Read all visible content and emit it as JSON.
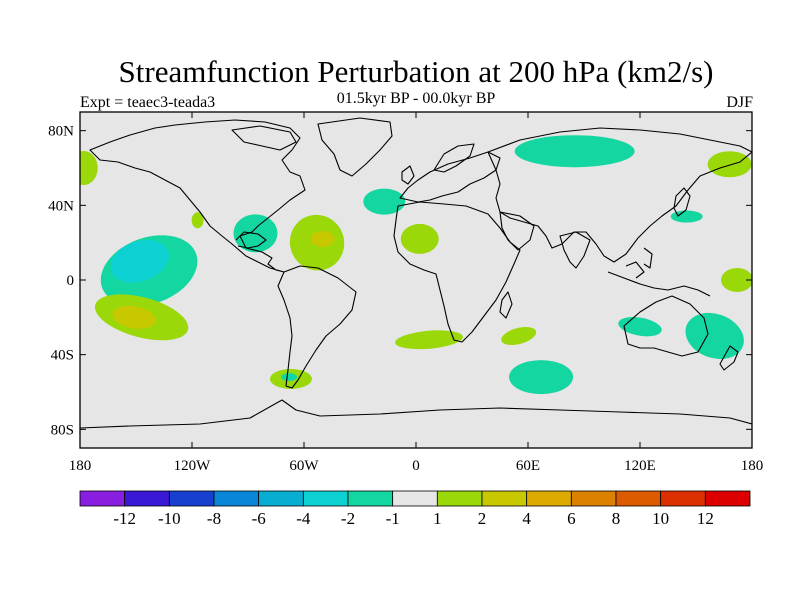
{
  "title": "Streamfunction Perturbation at 200 hPa (km2/s)",
  "subtitle": "01.5kyr BP - 00.0kyr BP",
  "left_label": "Expt = teaec3-teada3",
  "right_label": "DJF",
  "map": {
    "lon_range": [
      -180,
      180
    ],
    "lat_range": [
      -90,
      90
    ],
    "x_ticks": [
      "180",
      "120W",
      "60W",
      "0",
      "60E",
      "120E",
      "180"
    ],
    "y_ticks": [
      "80N",
      "40N",
      "0",
      "40S",
      "80S"
    ],
    "background_color": "#e6e6e6"
  },
  "colorbar": {
    "labels": [
      "-12",
      "-10",
      "-8",
      "-6",
      "-4",
      "-2",
      "-1",
      "1",
      "2",
      "4",
      "6",
      "8",
      "10",
      "12"
    ],
    "colors": [
      "#8a1ee0",
      "#3a18d6",
      "#1840d0",
      "#0a86d8",
      "#08aed2",
      "#0cd0d2",
      "#14d6a0",
      "#e6e6e6",
      "#9ad80a",
      "#c8c800",
      "#dcaa00",
      "#dc8000",
      "#dc5a00",
      "#dc3000",
      "#dc0000"
    ]
  },
  "chart_data": {
    "type": "heatmap",
    "title": "Streamfunction Perturbation at 200 hPa (km2/s)",
    "subtitle": "01.5kyr BP - 00.0kyr BP",
    "season": "DJF",
    "experiment": "teaec3-teada3",
    "regions": [
      {
        "lon": -143,
        "lat": 5,
        "value": -2,
        "level": 6
      },
      {
        "lon": -148,
        "lat": 10,
        "value": -4,
        "level": 5
      },
      {
        "lon": -147,
        "lat": -20,
        "value": 2,
        "level": 8
      },
      {
        "lon": -151,
        "lat": -20,
        "value": 4,
        "level": 9
      },
      {
        "lon": -86,
        "lat": 25,
        "value": -2,
        "level": 6
      },
      {
        "lon": -53,
        "lat": 20,
        "value": 2,
        "level": 8
      },
      {
        "lon": -50,
        "lat": 22,
        "value": 4,
        "level": 9
      },
      {
        "lon": -17,
        "lat": 42,
        "value": -2,
        "level": 6
      },
      {
        "lon": 2,
        "lat": 22,
        "value": 2,
        "level": 8
      },
      {
        "lon": 85,
        "lat": 69,
        "value": -2,
        "level": 6
      },
      {
        "lon": 168,
        "lat": 62,
        "value": 2,
        "level": 8
      },
      {
        "lon": -178,
        "lat": 60,
        "value": 2,
        "level": 8
      },
      {
        "lon": 7,
        "lat": -32,
        "value": 2,
        "level": 8
      },
      {
        "lon": 55,
        "lat": -30,
        "value": 2,
        "level": 8
      },
      {
        "lon": 67,
        "lat": -52,
        "value": -2,
        "level": 6
      },
      {
        "lon": 120,
        "lat": -25,
        "value": -2,
        "level": 6
      },
      {
        "lon": 160,
        "lat": -30,
        "value": -2,
        "level": 6
      },
      {
        "lon": 145,
        "lat": 34,
        "value": -2,
        "level": 6
      },
      {
        "lon": 172,
        "lat": 0,
        "value": 2,
        "level": 8
      },
      {
        "lon": -67,
        "lat": -53,
        "value": 2,
        "level": 8
      },
      {
        "lon": -68,
        "lat": -52,
        "value": -2,
        "level": 6
      },
      {
        "lon": -117,
        "lat": 32,
        "value": 2,
        "level": 8
      }
    ]
  }
}
